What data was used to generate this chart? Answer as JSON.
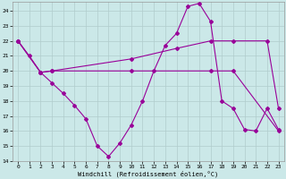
{
  "xlabel": "Windchill (Refroidissement éolien,°C)",
  "background_color": "#cbe8e8",
  "grid_color": "#b0cccc",
  "line_color": "#990099",
  "xlim": [
    -0.5,
    23.5
  ],
  "ylim": [
    14,
    24.6
  ],
  "yticks": [
    14,
    15,
    16,
    17,
    18,
    19,
    20,
    21,
    22,
    23,
    24
  ],
  "xticks": [
    0,
    1,
    2,
    3,
    4,
    5,
    6,
    7,
    8,
    9,
    10,
    11,
    12,
    13,
    14,
    15,
    16,
    17,
    18,
    19,
    20,
    21,
    22,
    23
  ],
  "line1_x": [
    0,
    1,
    2,
    3,
    4,
    5,
    6,
    7,
    8,
    9,
    10,
    11,
    12,
    13,
    14,
    15,
    16,
    17,
    18,
    19,
    20,
    21,
    22,
    23
  ],
  "line1_y": [
    22,
    21,
    19.9,
    19.2,
    18.5,
    17.7,
    16.8,
    15.0,
    14.3,
    15.2,
    16.4,
    18.0,
    20.0,
    21.7,
    22.5,
    24.3,
    24.5,
    23.3,
    18.0,
    17.5,
    16.1,
    16.0,
    17.5,
    16.1
  ],
  "line2_x": [
    0,
    2,
    3,
    10,
    14,
    17,
    19,
    22,
    23
  ],
  "line2_y": [
    22,
    19.9,
    20.0,
    20.8,
    21.5,
    22.0,
    22.0,
    22.0,
    17.5
  ],
  "line3_x": [
    0,
    2,
    3,
    10,
    17,
    19,
    23
  ],
  "line3_y": [
    22,
    19.9,
    20.0,
    20.0,
    20.0,
    20.0,
    16.0
  ]
}
